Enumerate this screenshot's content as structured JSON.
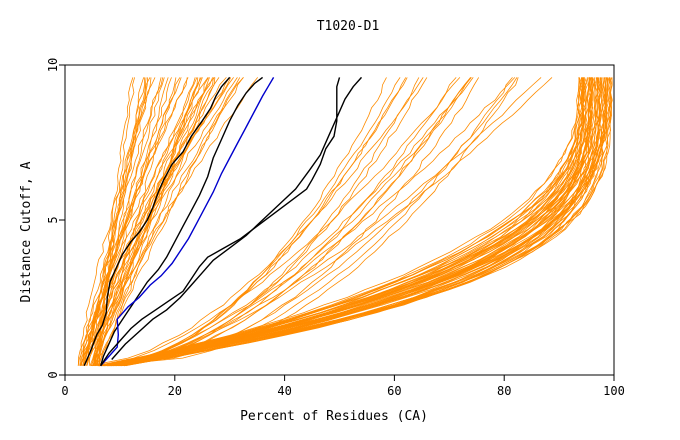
{
  "chart_data": {
    "type": "line",
    "title": "T1020-D1",
    "xlabel": "Percent of Residues (CA)",
    "ylabel": "Distance Cutoff, A",
    "xlim": [
      0,
      100
    ],
    "ylim": [
      0,
      10
    ],
    "x_ticks": [
      "0",
      "20",
      "40",
      "60",
      "80",
      "100"
    ],
    "y_ticks": [
      "0",
      "5",
      "10"
    ],
    "grid": false,
    "colors": {
      "background_series": "#ff8c00",
      "highlight_black": "#000000",
      "highlight_blue": "#0000cd",
      "axis": "#000000"
    },
    "background_bundles": [
      {
        "name": "steep-group",
        "count": 42,
        "x_at_0": [
          2.5,
          6.5
        ],
        "x_at_9_5": [
          11,
          36
        ],
        "shape": 0.9
      },
      {
        "name": "middle-group",
        "count": 20,
        "x_at_0": [
          4,
          9
        ],
        "x_at_9_5": [
          55,
          90
        ],
        "shape": 1.8
      },
      {
        "name": "flat-group",
        "count": 60,
        "x_at_0": [
          6,
          11
        ],
        "x_at_9_5": [
          93,
          100
        ],
        "shape": 3.2
      }
    ],
    "highlight_series": [
      {
        "name": "black-1",
        "color": "#000000",
        "points": [
          [
            3.5,
            0.3
          ],
          [
            4.5,
            0.7
          ],
          [
            5.8,
            1.3
          ],
          [
            6.8,
            1.6
          ],
          [
            7.5,
            2.0
          ],
          [
            7.7,
            2.5
          ],
          [
            8.2,
            3.0
          ],
          [
            9.2,
            3.4
          ],
          [
            10.5,
            3.9
          ],
          [
            12,
            4.3
          ],
          [
            13.5,
            4.6
          ],
          [
            15,
            5.0
          ],
          [
            16,
            5.4
          ],
          [
            17,
            5.9
          ],
          [
            18,
            6.3
          ],
          [
            19.5,
            6.8
          ],
          [
            21.5,
            7.2
          ],
          [
            23,
            7.7
          ],
          [
            25,
            8.2
          ],
          [
            26.5,
            8.6
          ],
          [
            27.5,
            9.0
          ],
          [
            28.5,
            9.3
          ],
          [
            30,
            9.6
          ]
        ]
      },
      {
        "name": "black-2",
        "color": "#000000",
        "points": [
          [
            6.5,
            0.3
          ],
          [
            7,
            0.6
          ],
          [
            8,
            1.0
          ],
          [
            9,
            1.4
          ],
          [
            10.5,
            1.8
          ],
          [
            12,
            2.2
          ],
          [
            13.5,
            2.6
          ],
          [
            15,
            3.0
          ],
          [
            17,
            3.4
          ],
          [
            18.5,
            3.8
          ],
          [
            20,
            4.3
          ],
          [
            21.5,
            4.8
          ],
          [
            23,
            5.3
          ],
          [
            24.5,
            5.8
          ],
          [
            26,
            6.4
          ],
          [
            27,
            7.0
          ],
          [
            28.5,
            7.6
          ],
          [
            30,
            8.2
          ],
          [
            31.5,
            8.7
          ],
          [
            33,
            9.1
          ],
          [
            34.5,
            9.4
          ],
          [
            36,
            9.6
          ]
        ]
      },
      {
        "name": "blue-1",
        "color": "#0000cd",
        "points": [
          [
            6.5,
            0.3
          ],
          [
            8,
            0.6
          ],
          [
            9.5,
            0.9
          ],
          [
            9.7,
            1.3
          ],
          [
            9.5,
            1.8
          ],
          [
            11.5,
            2.2
          ],
          [
            13.5,
            2.5
          ],
          [
            15.5,
            2.9
          ],
          [
            17.5,
            3.2
          ],
          [
            19.5,
            3.6
          ],
          [
            21,
            4.0
          ],
          [
            22.5,
            4.4
          ],
          [
            24,
            4.9
          ],
          [
            25.5,
            5.4
          ],
          [
            27,
            5.9
          ],
          [
            28.5,
            6.5
          ],
          [
            30,
            7.0
          ],
          [
            31.5,
            7.5
          ],
          [
            33,
            8.0
          ],
          [
            34.5,
            8.5
          ],
          [
            36,
            9.0
          ],
          [
            37,
            9.3
          ],
          [
            38,
            9.6
          ]
        ]
      },
      {
        "name": "black-3",
        "color": "#000000",
        "points": [
          [
            6.5,
            0.3
          ],
          [
            8,
            0.7
          ],
          [
            10,
            1.1
          ],
          [
            12,
            1.5
          ],
          [
            14,
            1.8
          ],
          [
            16.5,
            2.1
          ],
          [
            19,
            2.4
          ],
          [
            21.5,
            2.7
          ],
          [
            23,
            3.1
          ],
          [
            24.5,
            3.5
          ],
          [
            26,
            3.8
          ],
          [
            29,
            4.1
          ],
          [
            32,
            4.4
          ],
          [
            35,
            4.8
          ],
          [
            38,
            5.2
          ],
          [
            41,
            5.6
          ],
          [
            44,
            6.0
          ],
          [
            45,
            6.3
          ],
          [
            46.5,
            6.8
          ],
          [
            47.5,
            7.3
          ],
          [
            49,
            7.7
          ],
          [
            49.5,
            8.2
          ],
          [
            49.5,
            8.8
          ],
          [
            49.5,
            9.3
          ],
          [
            50,
            9.6
          ]
        ]
      },
      {
        "name": "black-4",
        "color": "#000000",
        "points": [
          [
            8.5,
            0.5
          ],
          [
            11,
            1.0
          ],
          [
            13.5,
            1.4
          ],
          [
            16,
            1.8
          ],
          [
            18.5,
            2.1
          ],
          [
            21,
            2.5
          ],
          [
            23,
            2.9
          ],
          [
            25,
            3.3
          ],
          [
            27,
            3.7
          ],
          [
            30,
            4.1
          ],
          [
            33,
            4.5
          ],
          [
            36,
            5.0
          ],
          [
            39,
            5.5
          ],
          [
            42,
            6.0
          ],
          [
            44.5,
            6.6
          ],
          [
            46.5,
            7.1
          ],
          [
            48,
            7.7
          ],
          [
            49.5,
            8.3
          ],
          [
            51,
            8.9
          ],
          [
            52.5,
            9.3
          ],
          [
            54,
            9.6
          ]
        ]
      }
    ]
  }
}
